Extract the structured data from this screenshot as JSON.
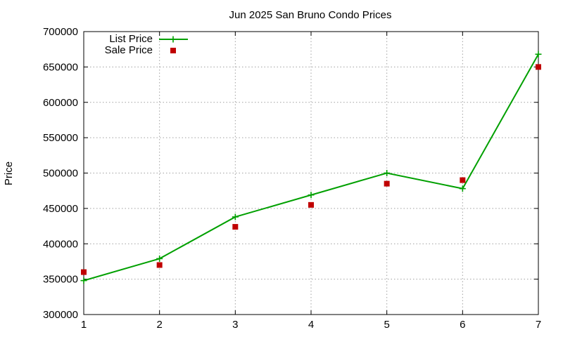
{
  "chart_data": {
    "type": "line",
    "title": "Jun 2025 San Bruno Condo Prices",
    "xlabel": "",
    "ylabel": "Price",
    "x": [
      1,
      2,
      3,
      4,
      5,
      6,
      7
    ],
    "xlim": [
      1,
      7
    ],
    "ylim": [
      300000,
      700000
    ],
    "xticks": [
      1,
      2,
      3,
      4,
      5,
      6,
      7
    ],
    "yticks": [
      300000,
      350000,
      400000,
      450000,
      500000,
      550000,
      600000,
      650000,
      700000
    ],
    "grid": true,
    "legend_position": "top-left",
    "series": [
      {
        "name": "List Price",
        "style": "line-with-plus-markers",
        "color": "#00a000",
        "values": [
          348000,
          379000,
          438000,
          469000,
          500000,
          478000,
          668000
        ]
      },
      {
        "name": "Sale Price",
        "style": "square-markers",
        "color": "#c00000",
        "values": [
          360000,
          370000,
          424000,
          455000,
          485000,
          490000,
          650000
        ]
      }
    ]
  }
}
